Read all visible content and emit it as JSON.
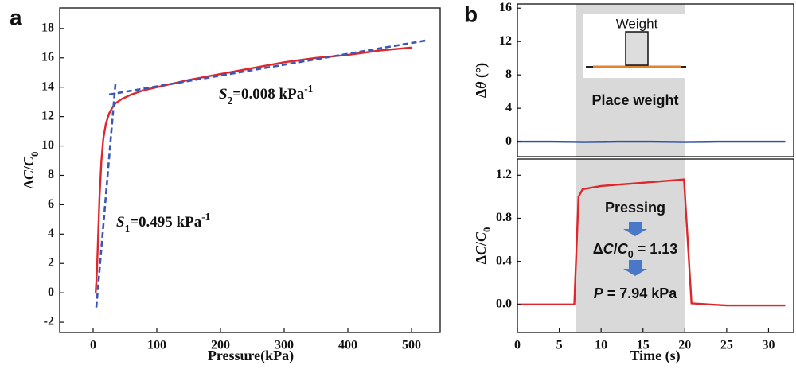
{
  "chart_data": [
    {
      "type": "line",
      "panel": "a",
      "x_label": "Pressure(kPa)",
      "y_label": [
        {
          "text": "Δ"
        },
        {
          "text": "C",
          "style": "italic"
        },
        {
          "text": "/"
        },
        {
          "text": "C",
          "style": "italic"
        },
        {
          "text": "0",
          "style": "sub"
        }
      ],
      "xlim": [
        -52.5,
        545
      ],
      "xticks": [
        0,
        100,
        200,
        300,
        400,
        500
      ],
      "ylim": [
        -2.7,
        19.4
      ],
      "yticks": [
        -2,
        0,
        2,
        4,
        6,
        8,
        10,
        12,
        14,
        16,
        18
      ],
      "series": [
        {
          "color": "#e0262a",
          "dash": false,
          "x": [
            4,
            6,
            8,
            10,
            13,
            16,
            20,
            25,
            30,
            35,
            45,
            60,
            80,
            100,
            150,
            200,
            250,
            300,
            350,
            400,
            450,
            500
          ],
          "values": [
            0,
            1.5,
            4,
            6.5,
            9,
            10.5,
            11.5,
            12.2,
            12.6,
            12.9,
            13.2,
            13.5,
            13.8,
            14.0,
            14.5,
            14.9,
            15.3,
            15.7,
            16.0,
            16.2,
            16.5,
            16.7
          ]
        },
        {
          "color": "#3a56b8",
          "dash": true,
          "x": [
            5,
            35
          ],
          "values": [
            -1,
            14.2
          ]
        },
        {
          "color": "#3a56b8",
          "dash": true,
          "x": [
            25,
            525
          ],
          "values": [
            13.5,
            17.2
          ]
        }
      ],
      "annotations": [
        [
          {
            "text": "S",
            "style": "italic"
          },
          {
            "text": "2",
            "style": "sub"
          },
          {
            "text": "=0.008 kPa"
          },
          {
            "text": "-1",
            "style": "sup"
          }
        ],
        [
          {
            "text": "S",
            "style": "italic"
          },
          {
            "text": "1",
            "style": "sub"
          },
          {
            "text": "=0.495 kPa"
          },
          {
            "text": "-1",
            "style": "sup"
          }
        ]
      ]
    },
    {
      "type": "line",
      "panel": "b",
      "y_label": [
        {
          "text": "Δ"
        },
        {
          "text": "θ",
          "style": "italic"
        },
        {
          "text": " (°)"
        }
      ],
      "xlim": [
        0,
        33
      ],
      "ylim": [
        -1.8,
        16.5
      ],
      "yticks": [
        0,
        4,
        8,
        12,
        16
      ],
      "shade": [
        7,
        20
      ],
      "shade_color": "#d9d9d9",
      "series": [
        {
          "color": "#2f4fa8",
          "dash": false,
          "x": [
            0,
            4,
            8,
            12,
            16,
            20,
            24,
            28,
            32
          ],
          "values": [
            0,
            0,
            -0.05,
            0,
            0,
            -0.05,
            0,
            0,
            0
          ]
        }
      ],
      "inset_label": "Weight",
      "annotations": [
        [
          {
            "text": "Place weight"
          }
        ]
      ]
    },
    {
      "type": "line",
      "x_label": "Time (s)",
      "y_label": [
        {
          "text": "Δ"
        },
        {
          "text": "C",
          "style": "italic"
        },
        {
          "text": "/"
        },
        {
          "text": "C",
          "style": "italic"
        },
        {
          "text": "0",
          "style": "sub"
        }
      ],
      "xlim": [
        0,
        33
      ],
      "xticks": [
        0,
        5,
        10,
        15,
        20,
        25,
        30
      ],
      "ylim": [
        -0.26,
        1.35
      ],
      "yticks": [
        {
          "value": 0,
          "label": "0.0"
        },
        0.4,
        0.8,
        1.2
      ],
      "shade": [
        7,
        20
      ],
      "shade_color": "#d9d9d9",
      "series": [
        {
          "color": "#e0262a",
          "dash": false,
          "x": [
            0,
            6.8,
            7.3,
            7.8,
            10,
            15,
            19.9,
            20.8,
            25,
            32
          ],
          "values": [
            0,
            0,
            1.0,
            1.07,
            1.1,
            1.13,
            1.16,
            0.01,
            -0.01,
            -0.01
          ]
        }
      ],
      "annotations": [
        [
          {
            "text": "Pressing"
          }
        ],
        [
          {
            "text": "Δ"
          },
          {
            "text": "C",
            "style": "italic"
          },
          {
            "text": "/"
          },
          {
            "text": "C",
            "style": "italic"
          },
          {
            "text": "0",
            "style": "sub"
          },
          {
            "text": " = 1.13"
          }
        ],
        [
          {
            "text": "P",
            "style": "italic"
          },
          {
            "text": " = 7.94 kPa"
          }
        ]
      ]
    }
  ]
}
